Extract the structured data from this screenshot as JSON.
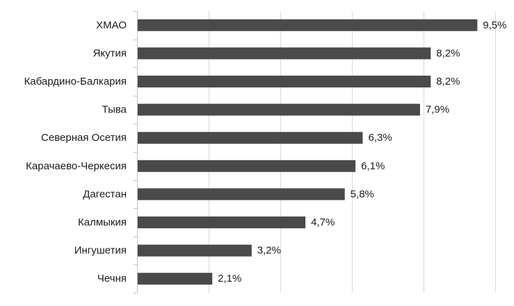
{
  "chart_data": {
    "type": "bar",
    "orientation": "horizontal",
    "categories": [
      "ХМАО",
      "Якутия",
      "Кабардино-Балкария",
      "Тыва",
      "Северная Осетия",
      "Карачаево-Черкесия",
      "Дагестан",
      "Калмыкия",
      "Ингушетия",
      "Чечня"
    ],
    "values": [
      9.5,
      8.2,
      8.2,
      7.9,
      6.3,
      6.1,
      5.8,
      4.7,
      3.2,
      2.1
    ],
    "data_labels": [
      "9,5%",
      "8,2%",
      "8,2%",
      "7,9%",
      "6,3%",
      "6,1%",
      "5,8%",
      "4,7%",
      "3,2%",
      "2,1%"
    ],
    "title": "",
    "xlabel": "",
    "ylabel": "",
    "xlim": [
      0,
      10
    ],
    "grid": "vertical",
    "legend": "none",
    "colors": {
      "bar": "#4a4a4a",
      "grid": "#d9d9d9",
      "axis": "#bfbfbf",
      "text": "#1a1a1a"
    }
  }
}
